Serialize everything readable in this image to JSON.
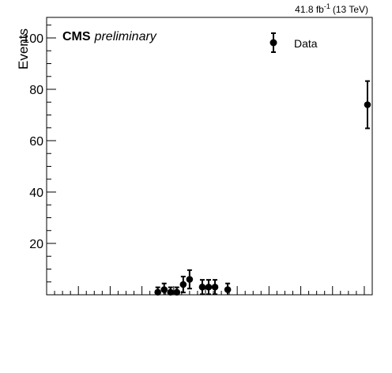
{
  "header": {
    "lumi_value": "41.8 fb",
    "lumi_exponent": "-1",
    "lumi_energy": "(13 TeV)"
  },
  "labels": {
    "experiment": "CMS",
    "status": "preliminary"
  },
  "chart_data": {
    "type": "scatter",
    "title": "",
    "xlabel": "",
    "ylabel": "Events",
    "ylim": [
      0,
      108
    ],
    "y_ticks": [
      20,
      40,
      60,
      80,
      100
    ],
    "x_tick_labels_shown": false,
    "grid": false,
    "legend": {
      "position": "top-right",
      "entries": [
        "Data"
      ]
    },
    "series": [
      {
        "name": "Data",
        "marker": "filled-circle",
        "color": "#000000",
        "points": [
          {
            "x": 35,
            "y": 1,
            "err": 1.9
          },
          {
            "x": 37,
            "y": 2,
            "err": 2.4
          },
          {
            "x": 39,
            "y": 1,
            "err": 1.9
          },
          {
            "x": 41,
            "y": 1,
            "err": 1.9
          },
          {
            "x": 43,
            "y": 4,
            "err": 3.1
          },
          {
            "x": 45,
            "y": 6,
            "err": 3.6
          },
          {
            "x": 49,
            "y": 3,
            "err": 2.8
          },
          {
            "x": 51,
            "y": 3,
            "err": 2.8
          },
          {
            "x": 53,
            "y": 3,
            "err": 2.8
          },
          {
            "x": 57,
            "y": 2,
            "err": 2.4
          },
          {
            "x": 101,
            "y": 74,
            "err": 9.2
          }
        ]
      }
    ]
  }
}
